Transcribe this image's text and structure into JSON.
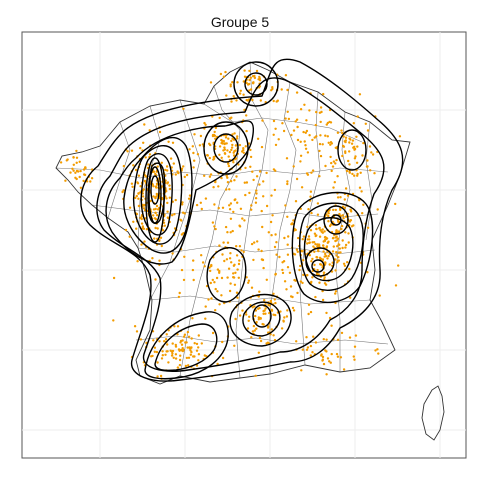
{
  "title": "Groupe 5",
  "colors": {
    "background": "#ffffff",
    "panel_border": "#555555",
    "grid": "#eeeeee",
    "departement_border": "#777777",
    "country_border": "#333333",
    "points": "#f39c00",
    "density_contours": "#000000"
  },
  "layers": [
    "departement-boundaries",
    "observation-points",
    "density-contours"
  ],
  "icons": [
    "corsica-outline"
  ]
}
